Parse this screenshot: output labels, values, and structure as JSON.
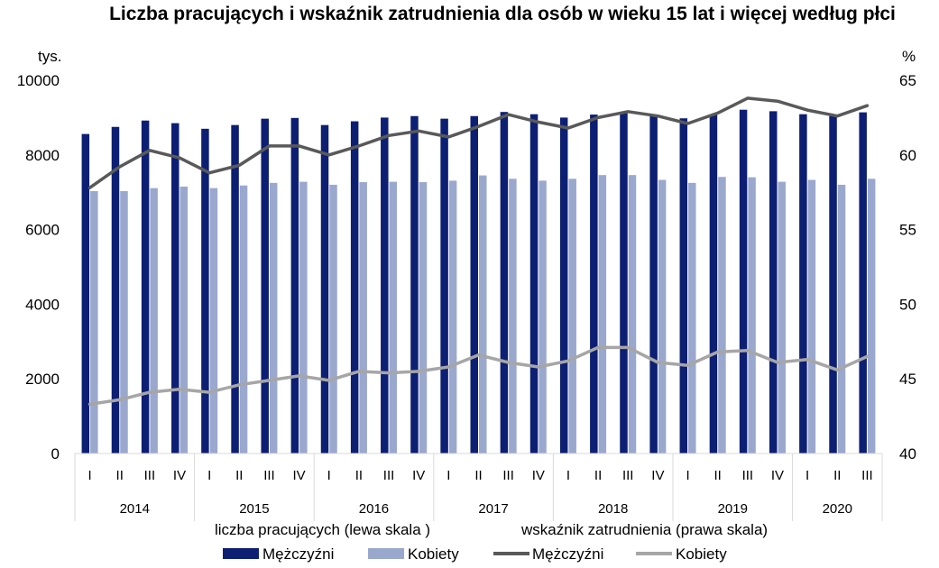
{
  "chart_data": {
    "type": "bar+line",
    "title": "Liczba pracujących i wskaźnik zatrudnienia dla osób w wieku 15 lat i więcej według płci",
    "left_axis": {
      "unit": "tys.",
      "min": 0,
      "max": 10000,
      "ticks": [
        0,
        2000,
        4000,
        6000,
        8000,
        10000
      ]
    },
    "right_axis": {
      "unit": "%",
      "min": 40,
      "max": 65,
      "ticks": [
        40,
        45,
        50,
        55,
        60,
        65
      ]
    },
    "categories": [
      "I",
      "II",
      "III",
      "IV",
      "I",
      "II",
      "III",
      "IV",
      "I",
      "II",
      "III",
      "IV",
      "I",
      "II",
      "III",
      "IV",
      "I",
      "II",
      "III",
      "IV",
      "I",
      "II",
      "III",
      "IV",
      "I",
      "II",
      "III"
    ],
    "years": [
      {
        "label": "2014",
        "count": 4
      },
      {
        "label": "2015",
        "count": 4
      },
      {
        "label": "2016",
        "count": 4
      },
      {
        "label": "2017",
        "count": 4
      },
      {
        "label": "2018",
        "count": 4
      },
      {
        "label": "2019",
        "count": 4
      },
      {
        "label": "2020",
        "count": 3
      }
    ],
    "legend_groups": {
      "left": "liczba pracujących (lewa skala )",
      "right": "wskaźnik zatrudnienia (prawa skala)"
    },
    "series": [
      {
        "name": "Mężczyźni",
        "kind": "bar",
        "axis": "left",
        "color": "#0d1f73",
        "values": [
          8560,
          8750,
          8920,
          8850,
          8700,
          8800,
          8970,
          8990,
          8800,
          8900,
          9000,
          9040,
          8970,
          9040,
          9150,
          9090,
          9000,
          9080,
          9130,
          9060,
          8980,
          9080,
          9210,
          9170,
          9090,
          9040,
          9140
        ]
      },
      {
        "name": "Kobiety",
        "kind": "bar",
        "axis": "left",
        "color": "#9ba8cd",
        "values": [
          7030,
          7030,
          7110,
          7150,
          7110,
          7180,
          7250,
          7280,
          7200,
          7270,
          7280,
          7270,
          7310,
          7450,
          7360,
          7310,
          7360,
          7460,
          7460,
          7330,
          7250,
          7410,
          7400,
          7280,
          7330,
          7200,
          7360
        ]
      },
      {
        "name": "Mężczyźni",
        "kind": "line",
        "axis": "right",
        "color": "#595959",
        "values": [
          57.8,
          59.2,
          60.3,
          59.8,
          58.8,
          59.3,
          60.6,
          60.6,
          60.0,
          60.6,
          61.3,
          61.6,
          61.2,
          61.9,
          62.7,
          62.2,
          61.8,
          62.5,
          62.9,
          62.6,
          62.1,
          62.8,
          63.8,
          63.6,
          63.0,
          62.6,
          63.3
        ]
      },
      {
        "name": "Kobiety",
        "kind": "line",
        "axis": "right",
        "color": "#a6a6a6",
        "values": [
          43.3,
          43.6,
          44.1,
          44.3,
          44.1,
          44.6,
          44.9,
          45.2,
          44.9,
          45.5,
          45.4,
          45.5,
          45.8,
          46.6,
          46.1,
          45.8,
          46.2,
          47.1,
          47.1,
          46.1,
          45.9,
          46.8,
          46.9,
          46.1,
          46.3,
          45.6,
          46.5
        ]
      }
    ]
  }
}
